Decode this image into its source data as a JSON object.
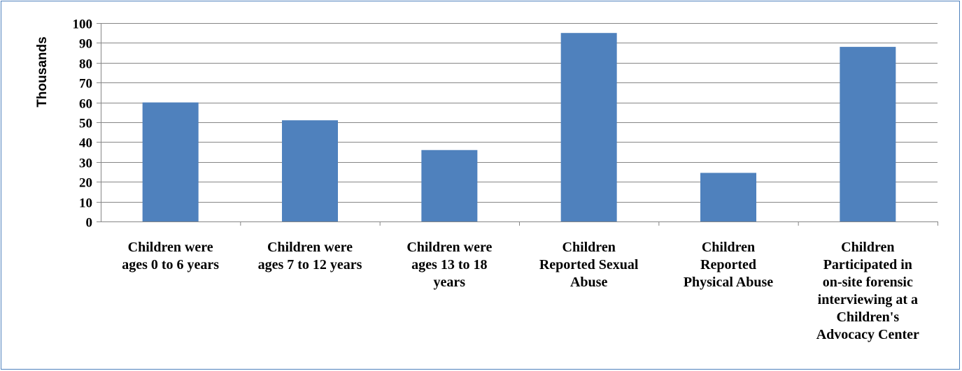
{
  "chart_data": {
    "type": "bar",
    "categories": [
      [
        "Children were",
        "ages 0 to 6 years"
      ],
      [
        "Children were",
        "ages 7 to 12 years"
      ],
      [
        "Children were",
        "ages 13 to 18",
        "years"
      ],
      [
        "Children",
        "Reported Sexual",
        "Abuse"
      ],
      [
        "Children",
        "Reported",
        "Physical Abuse"
      ],
      [
        "Children",
        "Participated in",
        "on-site forensic",
        "interviewing at a",
        "Children's",
        "Advocacy Center"
      ]
    ],
    "values": [
      60,
      51,
      36,
      95,
      24.5,
      88
    ],
    "ylabel": "Thousands",
    "ylim": [
      0,
      100
    ],
    "yticks": [
      0,
      10,
      20,
      30,
      40,
      50,
      60,
      70,
      80,
      90,
      100
    ],
    "grid": true,
    "bar_color": "#4f81bd",
    "gridline_color": "#868686"
  }
}
